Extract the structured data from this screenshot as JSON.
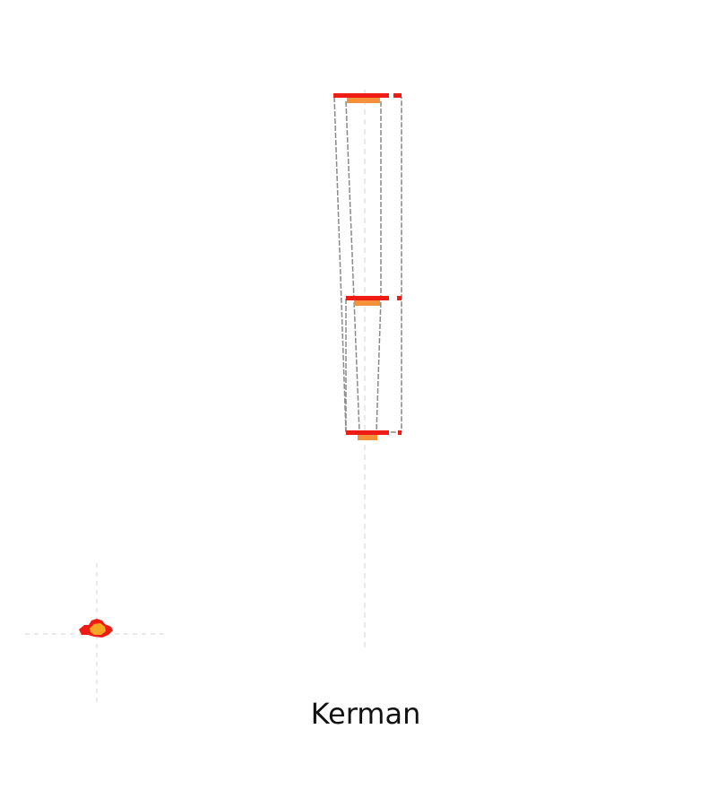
{
  "map": {
    "region_label": "Kerman",
    "colors": {
      "extent_red": "#ee1c12",
      "extent_orange": "#f5913a",
      "outline_gray": "#8a8a8a",
      "guide_gray": "#dcdcdc"
    }
  }
}
